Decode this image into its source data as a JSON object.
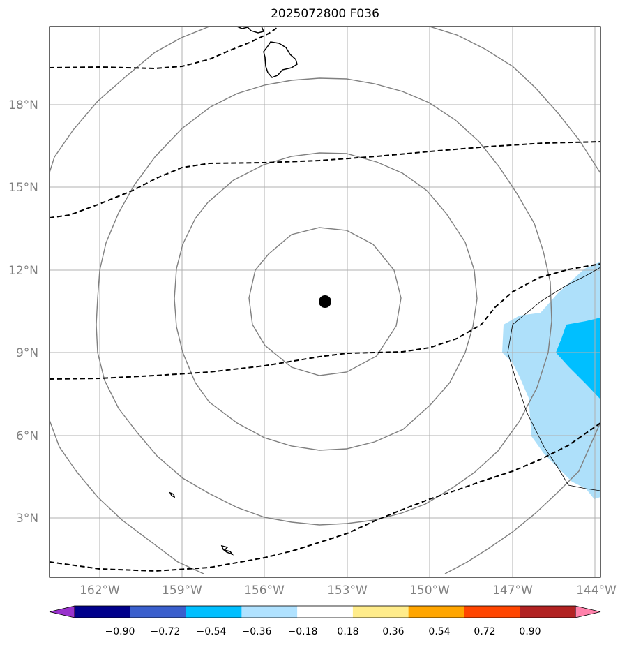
{
  "title": "2025072800 F036",
  "map": {
    "lat_ticks": [
      "18°N",
      "15°N",
      "12°N",
      "9°N",
      "6°N",
      "3°N"
    ],
    "lon_ticks": [
      "162°W",
      "159°W",
      "156°W",
      "153°W",
      "150°W",
      "147°W",
      "144°W"
    ],
    "center_marker": {
      "lon": -153.8,
      "lat": 10.9
    },
    "colors": {
      "grid": "#b0b0b0",
      "contour": "#808080",
      "dashed": "#000000",
      "shade_light": "#aee0fa",
      "shade_dark": "#00bfff"
    }
  },
  "colorbar": {
    "ticks": [
      "−0.90",
      "−0.72",
      "−0.54",
      "−0.36",
      "−0.18",
      "0.18",
      "0.36",
      "0.54",
      "0.72",
      "0.90"
    ],
    "colors": [
      "#9932cc",
      "#00008b",
      "#3a5fcd",
      "#00bfff",
      "#b0e2ff",
      "#ffffff",
      "#ffec8b",
      "#ffa500",
      "#ff4500",
      "#b22222",
      "#ff82ab"
    ]
  }
}
